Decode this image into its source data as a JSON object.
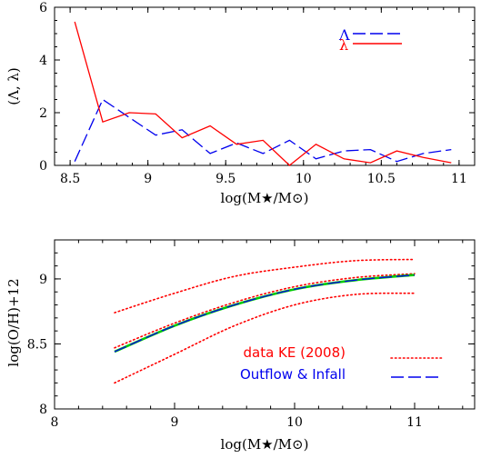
{
  "chart_data": [
    {
      "type": "line",
      "xlabel": "log(M★/M⊙)",
      "ylabel": "(Λ, λ)",
      "xlim": [
        8.4,
        11.1
      ],
      "ylim": [
        0,
        6
      ],
      "xticks": [
        8.5,
        9,
        9.5,
        10,
        10.5,
        11
      ],
      "xtick_labels": [
        "8.5",
        "9",
        "9.5",
        "10",
        "10.5",
        "11"
      ],
      "yticks": [
        0,
        2,
        4,
        6
      ],
      "ytick_labels": [
        "0",
        "2",
        "4",
        "6"
      ],
      "grid": false,
      "legend": "top-right",
      "series": [
        {
          "name": "Λ",
          "color": "#0000ee",
          "style": "dashed",
          "x": [
            8.53,
            8.71,
            8.88,
            9.05,
            9.22,
            9.4,
            9.57,
            9.74,
            9.91,
            10.08,
            10.26,
            10.43,
            10.6,
            10.77,
            10.95
          ],
          "y": [
            0.15,
            2.5,
            1.82,
            1.15,
            1.35,
            0.45,
            0.85,
            0.45,
            0.95,
            0.25,
            0.55,
            0.6,
            0.15,
            0.45,
            0.6
          ]
        },
        {
          "name": "λ",
          "color": "#ff0000",
          "style": "solid",
          "x": [
            8.53,
            8.71,
            8.88,
            9.05,
            9.22,
            9.4,
            9.57,
            9.74,
            9.91,
            10.08,
            10.26,
            10.43,
            10.6,
            10.77,
            10.95
          ],
          "y": [
            5.45,
            1.65,
            2.0,
            1.95,
            1.05,
            1.5,
            0.8,
            0.95,
            0.0,
            0.8,
            0.25,
            0.1,
            0.55,
            0.3,
            0.1
          ]
        }
      ]
    },
    {
      "type": "line",
      "xlabel": "log(M★/M⊙)",
      "ylabel": "log(O/H)+12",
      "xlim": [
        8,
        11.5
      ],
      "ylim": [
        8,
        9.3
      ],
      "xticks": [
        8,
        9,
        10,
        11
      ],
      "xtick_labels": [
        "8",
        "9",
        "10",
        "11"
      ],
      "yticks": [
        8,
        8.5,
        9
      ],
      "ytick_labels": [
        "8",
        "8.5",
        "9"
      ],
      "grid": false,
      "legend": "bottom-right",
      "series": [
        {
          "name": "data KE (2008)",
          "color": "#ff0000",
          "style": "dotted",
          "x": [
            8.5,
            9,
            9.5,
            10,
            10.5,
            11
          ],
          "y": [
            8.47,
            8.66,
            8.82,
            8.94,
            9.01,
            9.04
          ]
        },
        {
          "name": "",
          "color": "#ff0000",
          "style": "dotted",
          "x": [
            8.5,
            9,
            9.5,
            10,
            10.5,
            11
          ],
          "y": [
            8.74,
            8.89,
            9.02,
            9.09,
            9.14,
            9.15
          ]
        },
        {
          "name": "",
          "color": "#ff0000",
          "style": "dotted",
          "x": [
            8.5,
            9,
            9.5,
            10,
            10.5,
            11
          ],
          "y": [
            8.2,
            8.42,
            8.64,
            8.8,
            8.88,
            8.89
          ]
        },
        {
          "name": "",
          "color": "#00cc00",
          "style": "solid",
          "x": [
            8.5,
            9,
            9.5,
            10,
            10.5,
            11
          ],
          "y": [
            8.44,
            8.64,
            8.8,
            8.92,
            8.99,
            9.03
          ]
        },
        {
          "name": "Outflow & Infall",
          "color": "#0000ee",
          "style": "dashed",
          "x": [
            8.5,
            9,
            9.5,
            10,
            10.5,
            11
          ],
          "y": [
            8.44,
            8.64,
            8.8,
            8.92,
            8.99,
            9.03
          ]
        }
      ]
    }
  ]
}
